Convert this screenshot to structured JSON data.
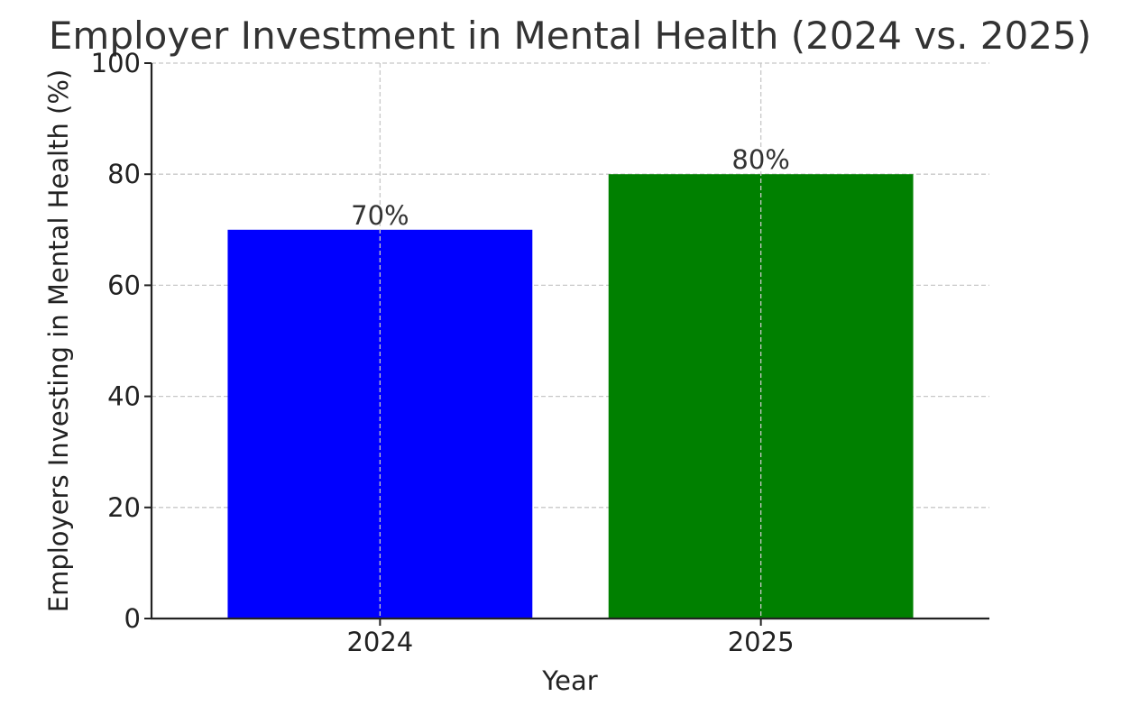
{
  "chart_data": {
    "type": "bar",
    "title": "Employer Investment in Mental Health (2024 vs. 2025)",
    "xlabel": "Year",
    "ylabel": "Employers Investing in Mental Health (%)",
    "categories": [
      "2024",
      "2025"
    ],
    "values": [
      70,
      80
    ],
    "data_labels": [
      "70%",
      "80%"
    ],
    "colors": [
      "#0000ff",
      "#008000"
    ],
    "ylim": [
      0,
      100
    ],
    "yticks": [
      0,
      20,
      40,
      60,
      80,
      100
    ],
    "grid": true,
    "legend": "none"
  }
}
